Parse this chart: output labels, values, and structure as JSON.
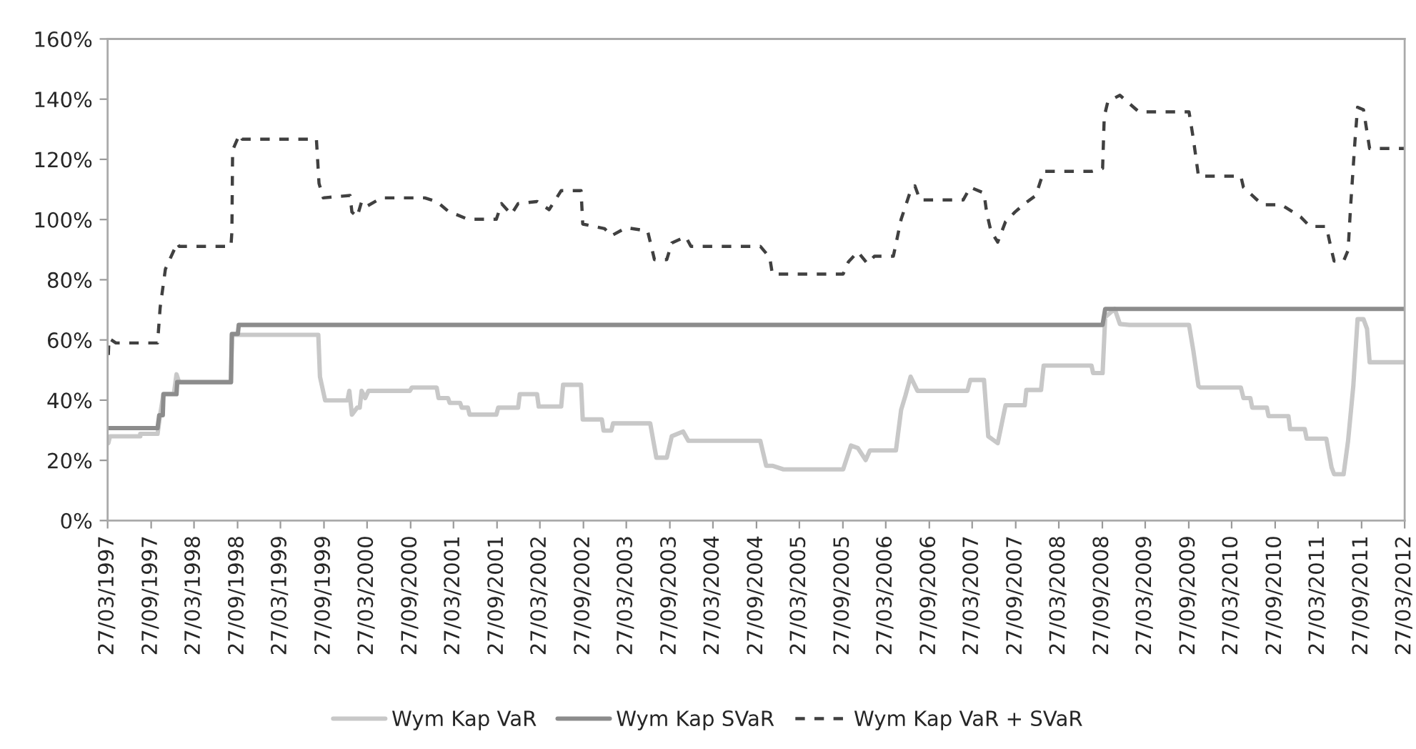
{
  "chart_data": {
    "type": "line",
    "xlim": [
      "1997-03-27",
      "2012-03-27"
    ],
    "xticks": [
      {
        "value": "1997-03-27",
        "label": "27/03/1997"
      },
      {
        "value": "1997-09-27",
        "label": "27/09/1997"
      },
      {
        "value": "1998-03-27",
        "label": "27/03/1998"
      },
      {
        "value": "1998-09-27",
        "label": "27/09/1998"
      },
      {
        "value": "1999-03-27",
        "label": "27/03/1999"
      },
      {
        "value": "1999-09-27",
        "label": "27/09/1999"
      },
      {
        "value": "2000-03-27",
        "label": "27/03/2000"
      },
      {
        "value": "2000-09-27",
        "label": "27/09/2000"
      },
      {
        "value": "2001-03-27",
        "label": "27/03/2001"
      },
      {
        "value": "2001-09-27",
        "label": "27/09/2001"
      },
      {
        "value": "2002-03-27",
        "label": "27/03/2002"
      },
      {
        "value": "2002-09-27",
        "label": "27/09/2002"
      },
      {
        "value": "2003-03-27",
        "label": "27/03/2003"
      },
      {
        "value": "2003-09-27",
        "label": "27/09/2003"
      },
      {
        "value": "2004-03-27",
        "label": "27/03/2004"
      },
      {
        "value": "2004-09-27",
        "label": "27/09/2004"
      },
      {
        "value": "2005-03-27",
        "label": "27/03/2005"
      },
      {
        "value": "2005-09-27",
        "label": "27/09/2005"
      },
      {
        "value": "2006-03-27",
        "label": "27/03/2006"
      },
      {
        "value": "2006-09-27",
        "label": "27/09/2006"
      },
      {
        "value": "2007-03-27",
        "label": "27/03/2007"
      },
      {
        "value": "2007-09-27",
        "label": "27/09/2007"
      },
      {
        "value": "2008-03-27",
        "label": "27/03/2008"
      },
      {
        "value": "2008-09-27",
        "label": "27/09/2008"
      },
      {
        "value": "2009-03-27",
        "label": "27/03/2009"
      },
      {
        "value": "2009-09-27",
        "label": "27/09/2009"
      },
      {
        "value": "2010-03-27",
        "label": "27/03/2010"
      },
      {
        "value": "2010-09-27",
        "label": "27/09/2010"
      },
      {
        "value": "2011-03-27",
        "label": "27/03/2011"
      },
      {
        "value": "2011-09-27",
        "label": "27/09/2011"
      },
      {
        "value": "2012-03-27",
        "label": "27/03/2012"
      }
    ],
    "ylim": [
      0,
      160
    ],
    "yticks": [
      {
        "value": 0,
        "label": "0%"
      },
      {
        "value": 20,
        "label": "20%"
      },
      {
        "value": 40,
        "label": "40%"
      },
      {
        "value": 60,
        "label": "60%"
      },
      {
        "value": 80,
        "label": "80%"
      },
      {
        "value": 100,
        "label": "100%"
      },
      {
        "value": 120,
        "label": "120%"
      },
      {
        "value": 140,
        "label": "140%"
      },
      {
        "value": 160,
        "label": "160%"
      }
    ],
    "grid": false,
    "legend": "bottom",
    "marker": "none",
    "series": [
      {
        "name": "Wym Kap VaR",
        "color": "#c8c8c8",
        "line_style": "solid",
        "x": [
          "1997-03-30",
          "1997-04-06",
          "1997-08-12",
          "1997-08-12",
          "1997-10-24",
          "1997-11-04",
          "1997-11-18",
          "1998-01-01",
          "1998-01-12",
          "1998-01-23",
          "1998-08-30",
          "1998-09-03",
          "1999-09-03",
          "1999-09-10",
          "1999-10-02",
          "2000-01-04",
          "2000-01-12",
          "2000-01-23",
          "2000-02-14",
          "2000-02-25",
          "2000-03-04",
          "2000-03-19",
          "2000-04-02",
          "2000-09-24",
          "2000-10-02",
          "2001-01-15",
          "2001-01-23",
          "2001-03-04",
          "2001-03-11",
          "2001-04-24",
          "2001-05-01",
          "2001-05-27",
          "2001-06-03",
          "2001-09-24",
          "2001-10-02",
          "2001-12-25",
          "2002-01-01",
          "2002-03-15",
          "2002-03-22",
          "2002-06-25",
          "2002-07-03",
          "2002-09-17",
          "2002-09-24",
          "2002-12-14",
          "2002-12-21",
          "2003-01-23",
          "2003-01-30",
          "2003-07-06",
          "2003-08-01",
          "2003-09-14",
          "2003-10-05",
          "2003-11-22",
          "2003-12-14",
          "2004-10-13",
          "2004-11-07",
          "2004-12-03",
          "2005-01-19",
          "2005-09-28",
          "2005-10-31",
          "2005-11-29",
          "2006-01-01",
          "2006-01-19",
          "2006-05-09",
          "2006-05-31",
          "2006-06-18",
          "2006-07-10",
          "2006-08-08",
          "2007-03-07",
          "2007-03-19",
          "2007-05-16",
          "2007-06-03",
          "2007-07-13",
          "2007-08-15",
          "2007-11-04",
          "2007-11-11",
          "2008-01-12",
          "2008-01-23",
          "2008-08-12",
          "2008-08-19",
          "2008-09-28",
          "2008-10-09",
          "2008-11-18",
          "2008-12-10",
          "2009-01-19",
          "2009-09-28",
          "2009-10-16",
          "2009-11-07",
          "2009-11-15",
          "2010-05-05",
          "2010-05-16",
          "2010-06-14",
          "2010-06-22",
          "2010-08-23",
          "2010-08-30",
          "2010-11-22",
          "2010-11-29",
          "2011-01-30",
          "2011-02-07",
          "2011-05-01",
          "2011-05-23",
          "2011-06-03",
          "2011-07-13",
          "2011-08-01",
          "2011-08-23",
          "2011-09-10",
          "2011-10-05",
          "2011-10-20",
          "2011-10-31",
          "2012-03-26"
        ],
        "values": [
          25.7,
          28.0,
          28.0,
          28.8,
          28.8,
          35.2,
          42.1,
          42.1,
          48.6,
          45.9,
          45.9,
          61.7,
          61.7,
          47.8,
          39.9,
          39.9,
          43.1,
          35.2,
          37.5,
          37.5,
          43.1,
          40.7,
          43.1,
          43.1,
          44.2,
          44.2,
          40.7,
          40.7,
          39.1,
          39.1,
          37.5,
          37.5,
          35.2,
          35.2,
          37.5,
          37.5,
          42.0,
          42.0,
          37.9,
          37.9,
          45.1,
          45.1,
          33.6,
          33.6,
          29.9,
          29.9,
          32.3,
          32.3,
          20.9,
          20.9,
          28.0,
          29.6,
          26.5,
          26.5,
          18.2,
          18.2,
          17.0,
          17.0,
          24.9,
          24.1,
          20.1,
          23.3,
          23.3,
          36.8,
          41.5,
          47.8,
          43.1,
          43.1,
          46.7,
          46.7,
          28.0,
          25.7,
          38.3,
          38.3,
          43.4,
          43.4,
          51.5,
          51.5,
          49.0,
          49.0,
          67.6,
          70.3,
          65.3,
          65.0,
          65.0,
          56.6,
          44.7,
          44.2,
          44.2,
          40.7,
          40.7,
          37.5,
          37.5,
          34.7,
          34.7,
          30.4,
          30.4,
          27.2,
          27.2,
          17.7,
          15.4,
          15.4,
          26.5,
          44.7,
          66.9,
          66.9,
          63.7,
          52.6,
          52.6
        ]
      },
      {
        "name": "Wym Kap SVaR",
        "color": "#8c8c8c",
        "line_style": "solid",
        "x": [
          "1997-03-27",
          "1997-10-24",
          "1997-10-31",
          "1997-11-15",
          "1997-11-18",
          "1998-01-12",
          "1998-01-15",
          "1998-08-30",
          "1998-09-03",
          "1998-09-28",
          "1998-10-02",
          "2008-09-28",
          "2008-10-09",
          "2012-03-26"
        ],
        "values": [
          30.7,
          30.7,
          35,
          35,
          42,
          42,
          46,
          46,
          62,
          62,
          65,
          65,
          70.3,
          70.3
        ]
      },
      {
        "name": "Wym Kap VaR + SVaR",
        "color": "#404040",
        "line_style": "dashed",
        "x": [
          "1997-03-30",
          "1997-04-02",
          "1997-05-01",
          "1997-10-24",
          "1997-11-04",
          "1997-11-26",
          "1998-01-15",
          "1998-01-23",
          "1998-08-30",
          "1998-09-03",
          "1998-09-06",
          "1998-10-05",
          "1998-10-16",
          "1999-08-26",
          "1999-09-06",
          "1999-09-24",
          "2000-01-15",
          "2000-01-23",
          "2000-02-14",
          "2000-03-04",
          "2000-03-26",
          "2000-05-27",
          "2000-11-26",
          "2001-01-15",
          "2001-03-04",
          "2001-05-27",
          "2001-09-24",
          "2001-10-16",
          "2001-11-26",
          "2001-12-25",
          "2002-03-15",
          "2002-05-05",
          "2002-06-25",
          "2002-09-17",
          "2002-09-24",
          "2002-12-25",
          "2003-01-23",
          "2003-03-26",
          "2003-06-25",
          "2003-07-24",
          "2003-09-14",
          "2003-10-05",
          "2003-12-03",
          "2003-12-25",
          "2004-10-13",
          "2004-11-22",
          "2004-12-03",
          "2005-09-28",
          "2005-10-20",
          "2005-11-29",
          "2006-01-08",
          "2006-02-07",
          "2006-04-28",
          "2006-05-31",
          "2006-07-10",
          "2006-07-28",
          "2006-08-19",
          "2007-02-17",
          "2007-03-19",
          "2007-05-16",
          "2007-05-27",
          "2007-06-14",
          "2007-07-13",
          "2007-08-15",
          "2007-09-24",
          "2007-11-04",
          "2007-12-21",
          "2008-01-23",
          "2008-08-12",
          "2008-09-28",
          "2008-10-05",
          "2008-10-20",
          "2008-12-10",
          "2009-02-28",
          "2009-09-28",
          "2009-10-16",
          "2009-11-07",
          "2010-05-05",
          "2010-05-16",
          "2010-08-04",
          "2010-10-24",
          "2011-01-12",
          "2011-02-21",
          "2011-05-01",
          "2011-05-23",
          "2011-06-03",
          "2011-07-13",
          "2011-08-01",
          "2011-08-12",
          "2011-08-30",
          "2011-09-10",
          "2011-10-05",
          "2011-10-31",
          "2012-03-26"
        ],
        "values": [
          55,
          60.5,
          59,
          59,
          70.8,
          83.5,
          92.2,
          91.1,
          91.1,
          96,
          123,
          128.3,
          126.7,
          126.7,
          112,
          107.2,
          108,
          102.5,
          100.9,
          106,
          104.4,
          107.2,
          107.2,
          106,
          102.8,
          100.1,
          100.1,
          105.3,
          101.7,
          105.3,
          106,
          103.3,
          109.6,
          109.6,
          98.5,
          97,
          94.6,
          97.3,
          96.2,
          86.7,
          86.7,
          92.2,
          94.3,
          91.1,
          91.1,
          87.4,
          81.9,
          81.9,
          85.9,
          89.3,
          85.4,
          87.8,
          87.8,
          100.1,
          109.6,
          111.2,
          106.5,
          106.5,
          110.7,
          108.8,
          102.5,
          96.2,
          92.5,
          99.3,
          102.5,
          105.3,
          108,
          116,
          116,
          117,
          134.2,
          139.2,
          141.3,
          135.8,
          135.8,
          127,
          114.4,
          114.4,
          110.7,
          104.9,
          104.9,
          100.9,
          97.7,
          97.7,
          89.8,
          86.2,
          86.2,
          89.8,
          104.9,
          126,
          137.3,
          136.5,
          123.6,
          123.6
        ]
      }
    ]
  }
}
